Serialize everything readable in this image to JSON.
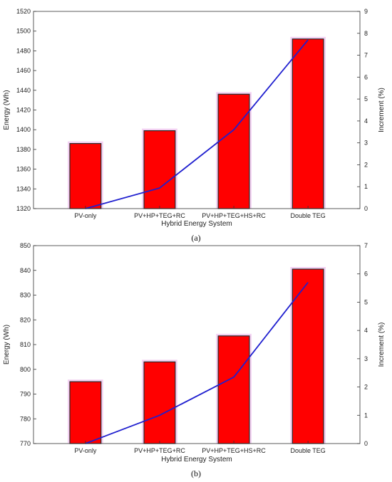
{
  "chart_data": [
    {
      "type": "bar",
      "caption": "(a)",
      "categories": [
        "PV-only",
        "PV+HP+TEG+RC",
        "PV+HP+TEG+HS+RC",
        "Double TEG"
      ],
      "values": [
        1386,
        1399,
        1436,
        1492
      ],
      "line_values": [
        0,
        0.94,
        3.6,
        7.7
      ],
      "xlabel": "Hybrid Energy System",
      "ylabel": "Energy (Wh)",
      "y2label": "Increment (%)",
      "ylim": [
        1320,
        1520
      ],
      "yticks": [
        1320,
        1340,
        1360,
        1380,
        1400,
        1420,
        1440,
        1460,
        1480,
        1500,
        1520
      ],
      "y2lim": [
        0,
        9
      ],
      "y2ticks": [
        0,
        1,
        2,
        3,
        4,
        5,
        6,
        7,
        8,
        9
      ],
      "bar_color": "#ff0000",
      "line_color": "#1f1fcf",
      "grid": false
    },
    {
      "type": "bar",
      "caption": "(b)",
      "categories": [
        "PV-only",
        "PV+HP+TEG+RC",
        "PV+HP+TEG+HS+RC",
        "Double TEG"
      ],
      "values": [
        795,
        803,
        813.5,
        840.5
      ],
      "line_values": [
        0,
        1.0,
        2.35,
        5.7
      ],
      "xlabel": "Hybrid Energy System",
      "ylabel": "Energy (Wh)",
      "y2label": "Increment (%)",
      "ylim": [
        770,
        850
      ],
      "yticks": [
        770,
        780,
        790,
        800,
        810,
        820,
        830,
        840,
        850
      ],
      "y2lim": [
        0,
        7
      ],
      "y2ticks": [
        0,
        1,
        2,
        3,
        4,
        5,
        6,
        7
      ],
      "bar_color": "#ff0000",
      "line_color": "#1f1fcf",
      "grid": false
    }
  ]
}
